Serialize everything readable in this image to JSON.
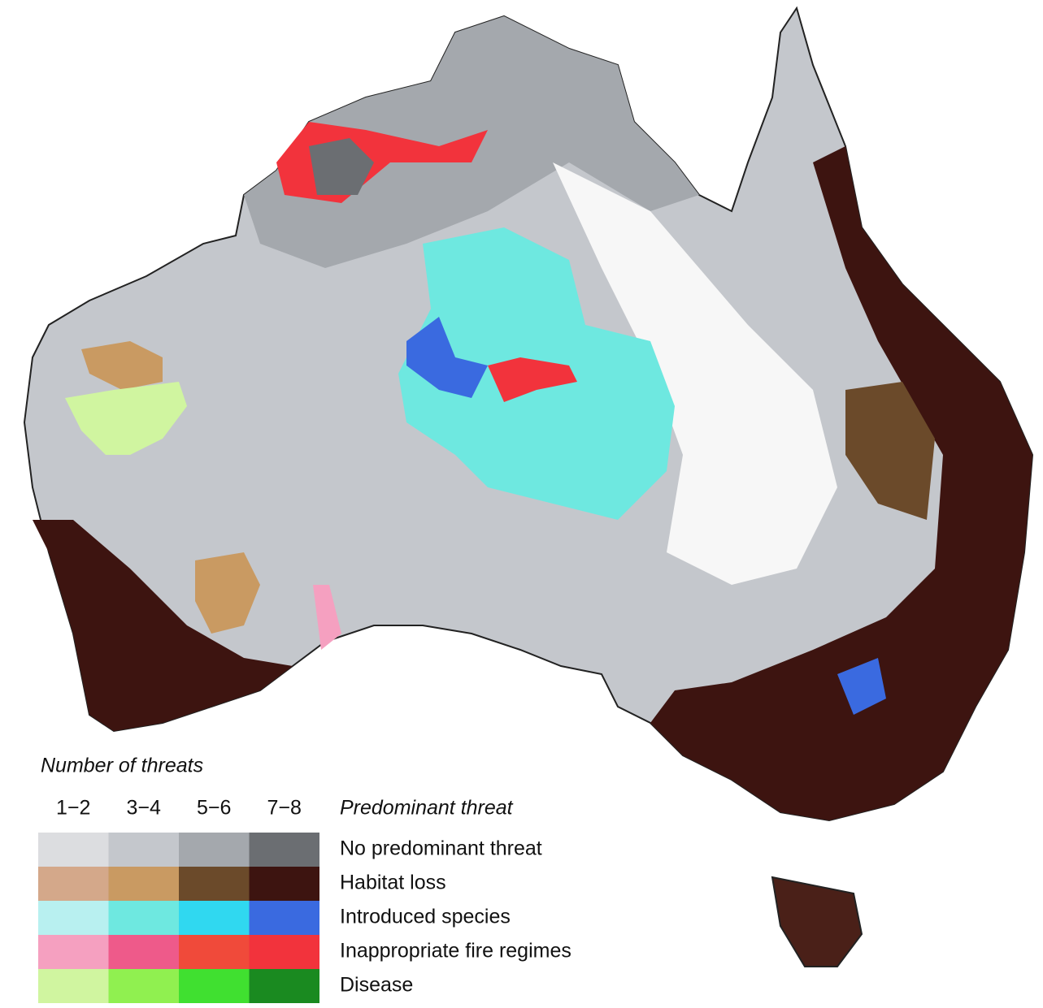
{
  "legend": {
    "title": "Number of threats",
    "columns": [
      "1−2",
      "3−4",
      "5−6",
      "7−8"
    ],
    "rows_title": "Predominant threat",
    "rows": [
      {
        "label": "No predominant threat",
        "colors": [
          "#dcdde0",
          "#c4c7cc",
          "#a4a8ad",
          "#6b6e72"
        ]
      },
      {
        "label": "Habitat loss",
        "colors": [
          "#d4a88a",
          "#c99a62",
          "#6b4a2a",
          "#3d1410"
        ]
      },
      {
        "label": "Introduced species",
        "colors": [
          "#b8f0f0",
          "#6ee8e0",
          "#30d8f0",
          "#3a6ae0"
        ]
      },
      {
        "label": "Inappropriate fire regimes",
        "colors": [
          "#f5a0c0",
          "#ee5a8a",
          "#f04a3a",
          "#f2333c"
        ]
      },
      {
        "label": "Disease",
        "colors": [
          "#d0f5a0",
          "#90f050",
          "#40e030",
          "#1a8a20"
        ]
      }
    ]
  }
}
